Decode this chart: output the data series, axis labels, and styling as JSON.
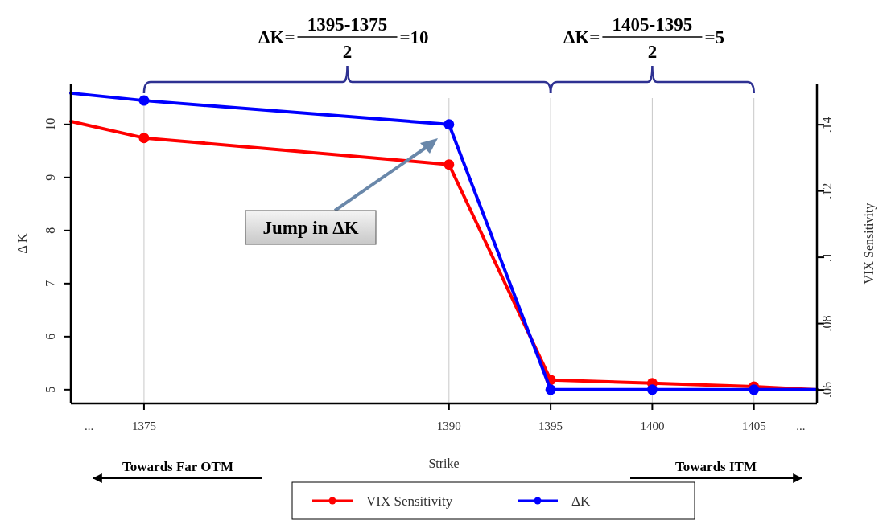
{
  "chart_data": {
    "type": "line",
    "xlabel": "Strike",
    "ylabel": "Δ K",
    "y2label": "VIX Sensitivity",
    "x": [
      1371.4,
      1375,
      1390,
      1395,
      1400,
      1405,
      1408.1
    ],
    "xlim": [
      1371.4,
      1408.1
    ],
    "xticks": [
      {
        "value": 1372.3,
        "label": "..."
      },
      1375,
      1390,
      1395,
      1400,
      1405,
      {
        "value": 1407.3,
        "label": "..."
      }
    ],
    "ylim": [
      4.74,
      10.77
    ],
    "yticks": [
      5,
      6,
      7,
      8,
      9,
      10
    ],
    "y2lim": [
      0.0559,
      0.1524
    ],
    "y2ticks": [
      {
        "value": 0.06,
        "label": ".06"
      },
      {
        "value": 0.08,
        "label": ".08"
      },
      {
        "value": 0.1,
        "label": ".1"
      },
      {
        "value": 0.12,
        "label": ".12"
      },
      {
        "value": 0.14,
        "label": ".14"
      }
    ],
    "series": [
      {
        "name": "VIX Sensitivity",
        "color": "#ff0000",
        "axis": "y2",
        "values": [
          0.141,
          0.136,
          0.128,
          0.063,
          0.062,
          0.061,
          0.06
        ]
      },
      {
        "name": "ΔK",
        "color": "#0000ff",
        "values": [
          10.59,
          10.45,
          10,
          5,
          5,
          5,
          5
        ]
      }
    ],
    "grid": "x",
    "legend": "bottom",
    "marker": "circle",
    "line_style": "solid",
    "annotations": [
      "ΔK=",
      "1395-1375",
      "2",
      "=10",
      "ΔK=",
      "1405-1395",
      "2",
      "=5",
      "Jump in ΔK",
      "Towards Far OTM",
      "Towards ITM"
    ]
  }
}
